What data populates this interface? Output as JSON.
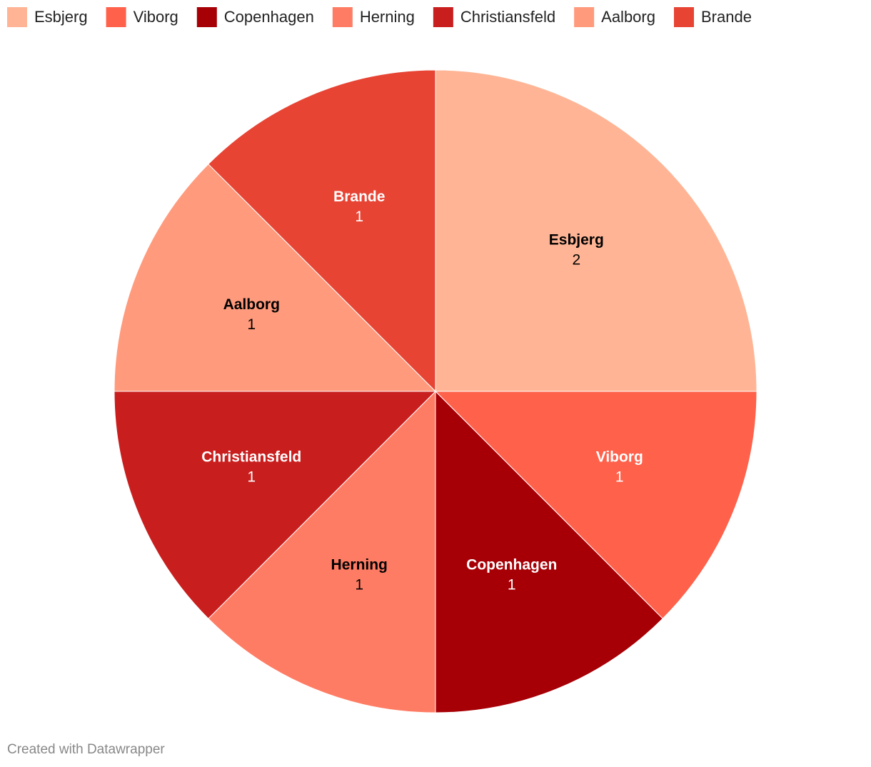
{
  "chart_data": {
    "type": "pie",
    "categories": [
      "Esbjerg",
      "Viborg",
      "Copenhagen",
      "Herning",
      "Christiansfeld",
      "Aalborg",
      "Brande"
    ],
    "values": [
      2,
      1,
      1,
      1,
      1,
      1,
      1
    ],
    "colors": [
      "#ffb595",
      "#ff614b",
      "#a60006",
      "#ff7c64",
      "#c91e1e",
      "#ff9a7c",
      "#e74434"
    ],
    "legend": "top-left",
    "credit": "Created with Datawrapper"
  }
}
